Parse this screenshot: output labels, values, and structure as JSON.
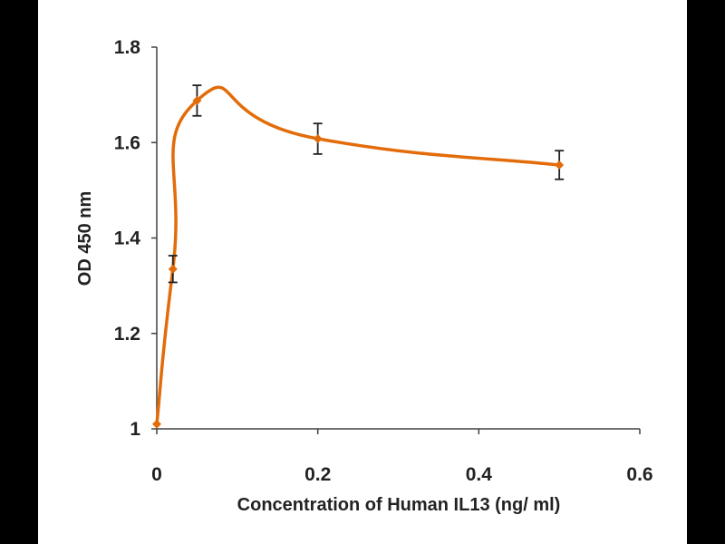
{
  "chart_data": {
    "type": "line",
    "title": "",
    "xlabel": "Concentration of Human IL13 (ng/ ml)",
    "ylabel": "OD 450 nm",
    "xlim": [
      0,
      0.6
    ],
    "ylim": [
      1,
      1.8
    ],
    "x_ticks": [
      0,
      0.2,
      0.4,
      0.6
    ],
    "x_tick_labels": [
      "0",
      "0.2",
      "0.4",
      "0.6"
    ],
    "y_ticks": [
      1,
      1.2,
      1.4,
      1.6,
      1.8
    ],
    "y_tick_labels": [
      "1",
      "1.2",
      "1.4",
      "1.6",
      "1.8"
    ],
    "grid": false,
    "legend": "none",
    "series": [
      {
        "color": "#E36C0A",
        "marker": "diamond",
        "smooth": true,
        "x": [
          0,
          0.02,
          0.05,
          0.2,
          0.5
        ],
        "y": [
          1.01,
          1.335,
          1.688,
          1.608,
          1.553
        ],
        "error": [
          0,
          0.028,
          0.032,
          0.032,
          0.03
        ]
      }
    ]
  }
}
